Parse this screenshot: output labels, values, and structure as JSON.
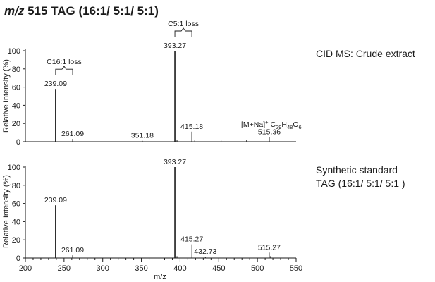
{
  "figure": {
    "title_italic": "m/z",
    "title_rest": " 515 TAG (16:1/ 5:1/ 5:1)"
  },
  "chart_data": [
    {
      "type": "bar",
      "panel": "top",
      "label": "CID MS: Crude extract",
      "xlabel": "",
      "ylabel": "Relative Intensity (%)",
      "xlim": [
        200,
        550
      ],
      "ylim": [
        0,
        100
      ],
      "yticks": [
        0,
        20,
        40,
        60,
        80,
        100
      ],
      "xticks": [],
      "peaks": [
        {
          "x": 239.09,
          "y": 58,
          "label": "239.09"
        },
        {
          "x": 261.09,
          "y": 3,
          "label": "261.09"
        },
        {
          "x": 351.18,
          "y": 1,
          "label": "351.18"
        },
        {
          "x": 393.27,
          "y": 100,
          "label": "393.27"
        },
        {
          "x": 396.0,
          "y": 2,
          "label": ""
        },
        {
          "x": 415.18,
          "y": 11,
          "label": "415.18"
        },
        {
          "x": 419.0,
          "y": 2,
          "label": ""
        },
        {
          "x": 453.0,
          "y": 1.5,
          "label": ""
        },
        {
          "x": 486.0,
          "y": 2,
          "label": ""
        },
        {
          "x": 515.36,
          "y": 5,
          "label": "515.36"
        }
      ],
      "annotations": [
        {
          "text": "C16:1 loss",
          "from": 239.09,
          "to": 261.09
        },
        {
          "text": "C5:1 loss",
          "from": 393.27,
          "to": 415.18
        }
      ],
      "ion_label": {
        "prefix": "[M+Na]",
        "charge": "+",
        "formula_parts": [
          "C",
          "29",
          "H",
          "48",
          "O",
          "6"
        ]
      }
    },
    {
      "type": "bar",
      "panel": "bottom",
      "label_lines": [
        "Synthetic standard",
        "TAG (16:1/ 5:1/ 5:1 )"
      ],
      "xlabel": "m/z",
      "ylabel": "Relative Intensity (%)",
      "xlim": [
        200,
        550
      ],
      "ylim": [
        0,
        100
      ],
      "yticks": [
        0,
        20,
        40,
        60,
        80,
        100
      ],
      "xticks": [
        200,
        250,
        300,
        350,
        400,
        450,
        500,
        550
      ],
      "peaks": [
        {
          "x": 239.09,
          "y": 58,
          "label": "239.09"
        },
        {
          "x": 261.09,
          "y": 3,
          "label": "261.09"
        },
        {
          "x": 393.27,
          "y": 100,
          "label": "393.27"
        },
        {
          "x": 396.0,
          "y": 2,
          "label": ""
        },
        {
          "x": 415.27,
          "y": 15,
          "label": "415.27"
        },
        {
          "x": 432.73,
          "y": 1.5,
          "label": "432.73"
        },
        {
          "x": 515.27,
          "y": 6,
          "label": "515.27"
        },
        {
          "x": 517.0,
          "y": 2,
          "label": ""
        }
      ]
    }
  ]
}
